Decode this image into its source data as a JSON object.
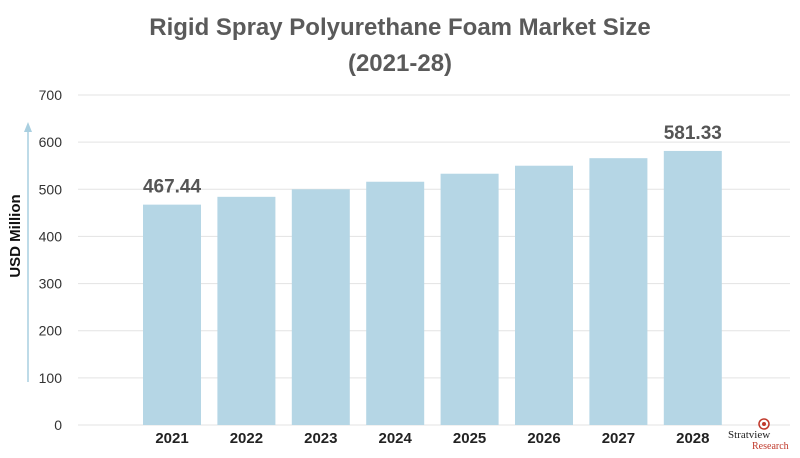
{
  "chart_data": {
    "type": "bar",
    "title": "Rigid Spray Polyurethane Foam Market Size",
    "subtitle": "(2021-28)",
    "ylabel": "USD Million",
    "xlabel": "",
    "categories": [
      "2021",
      "2022",
      "2023",
      "2024",
      "2025",
      "2026",
      "2027",
      "2028"
    ],
    "values": [
      467.44,
      484,
      500,
      516,
      533,
      550,
      566,
      581.33
    ],
    "data_labels": [
      "467.44",
      "",
      "",
      "",
      "",
      "",
      "",
      "581.33"
    ],
    "ylim": [
      0,
      700
    ],
    "yticks": [
      0,
      100,
      200,
      300,
      400,
      500,
      600,
      700
    ],
    "grid": true,
    "bar_color": "#b5d6e5",
    "grid_color": "#e3e3e3",
    "axis_arrow_color": "#a9cfe0"
  },
  "branding": {
    "name": "Stratview",
    "sub": "Research",
    "mark_color": "#c0392b"
  }
}
